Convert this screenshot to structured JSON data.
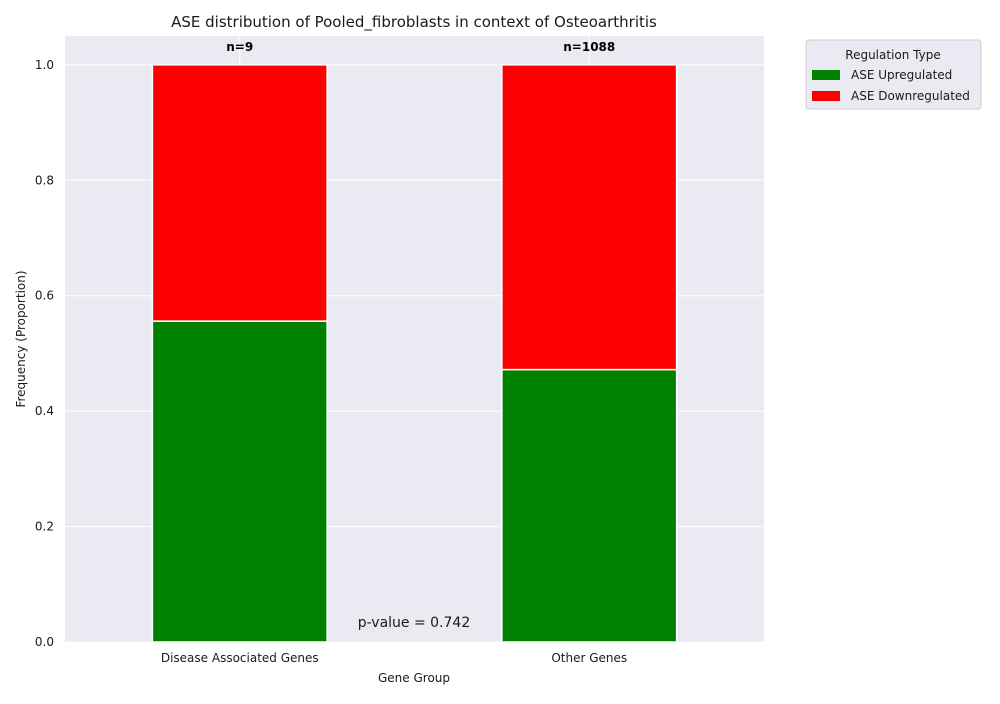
{
  "chart_data": {
    "type": "bar",
    "stacked": true,
    "title": "ASE distribution of Pooled_fibroblasts in context of Osteoarthritis",
    "xlabel": "Gene Group",
    "ylabel": "Frequency (Proportion)",
    "ylim": [
      0,
      1.05
    ],
    "yticks": [
      "0.0",
      "0.2",
      "0.4",
      "0.6",
      "0.8",
      "1.0"
    ],
    "categories": [
      "Disease Associated Genes",
      "Other Genes"
    ],
    "counts": [
      "n=9",
      "n=1088"
    ],
    "series": [
      {
        "name": "ASE Upregulated",
        "color": "#008000",
        "values": [
          0.556,
          0.472
        ]
      },
      {
        "name": "ASE Downregulated",
        "color": "#ff0000",
        "values": [
          0.444,
          0.528
        ]
      }
    ],
    "annotation": "p-value = 0.742",
    "legend": {
      "title": "Regulation Type",
      "placement": "outside-top-right"
    },
    "grid": true
  }
}
